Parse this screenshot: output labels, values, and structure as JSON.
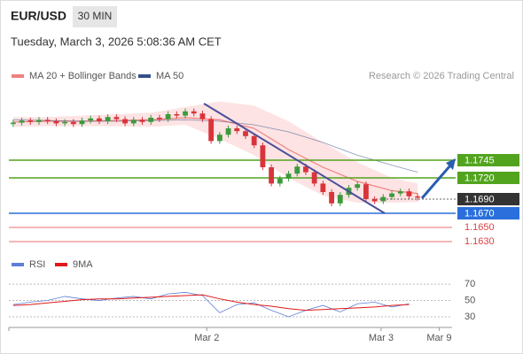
{
  "chart_data": {
    "type": "candlestick",
    "symbol": "EUR/USD",
    "interval": "30 MIN",
    "timestamp": "Tuesday, March 3, 2026 5:08:36 AM CET",
    "source": "Research © 2026 Trading Central",
    "xlim": [
      -0.5,
      51
    ],
    "ylim": [
      1.1615,
      1.18525
    ],
    "xticks": [
      {
        "value": 22.5,
        "label": "Mar 2"
      },
      {
        "value": 42.75,
        "label": "Mar 3"
      },
      {
        "value": 49.5,
        "label": "Mar 9"
      }
    ],
    "up_color": "#3c9a3c",
    "down_color": "#d9343a",
    "open": [
      1.1796,
      1.1798,
      1.1801,
      1.1799,
      1.1802,
      1.18,
      1.1797,
      1.1799,
      1.1796,
      1.1801,
      1.1804,
      1.18,
      1.1806,
      1.1803,
      1.1797,
      1.1802,
      1.1799,
      1.1805,
      1.1803,
      1.181,
      1.1808,
      1.1814,
      1.1811,
      1.1803,
      1.1772,
      1.1781,
      1.179,
      1.1786,
      1.1779,
      1.1766,
      1.1735,
      1.1712,
      1.1719,
      1.1726,
      1.1736,
      1.1728,
      1.1712,
      1.17,
      1.1684,
      1.1696,
      1.1706,
      1.1711,
      1.169,
      1.1687,
      1.1693,
      1.1698,
      1.1701,
      1.1694
    ],
    "high": [
      1.1802,
      1.1805,
      1.1805,
      1.1806,
      1.1806,
      1.1804,
      1.1803,
      1.1803,
      1.1805,
      1.1808,
      1.1808,
      1.181,
      1.181,
      1.1807,
      1.1806,
      1.1806,
      1.1809,
      1.1809,
      1.1814,
      1.1814,
      1.1818,
      1.1818,
      1.1815,
      1.1807,
      1.1785,
      1.1794,
      1.1794,
      1.179,
      1.1783,
      1.177,
      1.1739,
      1.1723,
      1.173,
      1.174,
      1.174,
      1.1732,
      1.1716,
      1.1704,
      1.17,
      1.171,
      1.1715,
      1.1715,
      1.1694,
      1.1697,
      1.1702,
      1.1705,
      1.1705,
      1.1698
    ],
    "low": [
      1.1792,
      1.1794,
      1.1795,
      1.1795,
      1.1796,
      1.1793,
      1.1793,
      1.1792,
      1.1792,
      1.1797,
      1.1796,
      1.1796,
      1.1799,
      1.1793,
      1.1793,
      1.1795,
      1.1795,
      1.1799,
      1.1799,
      1.1804,
      1.1804,
      1.1807,
      1.1799,
      1.1768,
      1.1768,
      1.1777,
      1.1782,
      1.1775,
      1.1762,
      1.1731,
      1.1708,
      1.1708,
      1.1715,
      1.1722,
      1.1724,
      1.1708,
      1.1696,
      1.168,
      1.168,
      1.1692,
      1.1702,
      1.1686,
      1.1683,
      1.1683,
      1.1689,
      1.1694,
      1.169,
      1.1688
    ],
    "close": [
      1.1798,
      1.1801,
      1.1799,
      1.1802,
      1.18,
      1.1797,
      1.1799,
      1.1796,
      1.1801,
      1.1804,
      1.18,
      1.1806,
      1.1803,
      1.1797,
      1.1802,
      1.1799,
      1.1805,
      1.1803,
      1.181,
      1.1808,
      1.1814,
      1.1811,
      1.1803,
      1.1772,
      1.1781,
      1.179,
      1.1786,
      1.1779,
      1.1766,
      1.1735,
      1.1712,
      1.1719,
      1.1726,
      1.1736,
      1.1728,
      1.1712,
      1.17,
      1.1684,
      1.1696,
      1.1706,
      1.1711,
      1.169,
      1.1687,
      1.1693,
      1.1698,
      1.1701,
      1.1694,
      1.1692
    ],
    "bands": {
      "name": "MA 20 + Bollinger Bands",
      "color": "#f08080",
      "fill": "#fde3e3",
      "x": [
        0,
        4,
        8,
        12,
        16,
        20,
        24,
        28,
        32,
        36,
        40,
        44,
        47
      ],
      "values": [
        1.1799,
        1.18,
        1.18,
        1.1801,
        1.1802,
        1.1805,
        1.1802,
        1.179,
        1.176,
        1.1735,
        1.1715,
        1.1702,
        1.1698
      ],
      "upper": [
        1.1806,
        1.1806,
        1.1808,
        1.181,
        1.1812,
        1.182,
        1.1828,
        1.1822,
        1.18,
        1.177,
        1.1742,
        1.172,
        1.1712
      ],
      "lower": [
        1.1792,
        1.1793,
        1.1793,
        1.1793,
        1.1792,
        1.1795,
        1.1775,
        1.1752,
        1.172,
        1.1695,
        1.1685,
        1.1685,
        1.1686
      ]
    },
    "ma50": {
      "name": "MA 50",
      "color": "#34508a",
      "x": [
        0,
        4,
        8,
        12,
        16,
        20,
        24,
        28,
        32,
        36,
        40,
        44,
        47
      ],
      "values": [
        1.1802,
        1.1801,
        1.18,
        1.18,
        1.1801,
        1.1802,
        1.18,
        1.1795,
        1.1785,
        1.177,
        1.1752,
        1.1738,
        1.1728
      ]
    },
    "levels": [
      {
        "value": 1.1745,
        "label": "1.1745",
        "color": "#52a41e",
        "style": "box"
      },
      {
        "value": 1.172,
        "label": "1.1720",
        "color": "#52a41e",
        "style": "box"
      },
      {
        "value": 1.169,
        "label": "1.1690",
        "color": "#333333",
        "style": "box",
        "line": "dotted"
      },
      {
        "value": 1.167,
        "label": "1.1670",
        "color": "#2a6fdb",
        "style": "box"
      },
      {
        "value": 1.165,
        "label": "1.1650",
        "color": "#e04040",
        "style": "text"
      },
      {
        "value": 1.163,
        "label": "1.1630",
        "color": "#e04040",
        "style": "text"
      }
    ],
    "rsi": {
      "ylim": [
        17,
        82
      ],
      "yticks": [
        30,
        50,
        70
      ],
      "x": [
        0,
        2,
        4,
        6,
        8,
        10,
        12,
        14,
        16,
        18,
        20,
        22,
        24,
        26,
        28,
        30,
        32,
        34,
        36,
        38,
        40,
        42,
        44,
        46
      ],
      "series": [
        {
          "name": "RSI",
          "color": "#5b7fd6",
          "values": [
            45,
            48,
            50,
            55,
            52,
            50,
            53,
            55,
            52,
            58,
            60,
            56,
            35,
            45,
            47,
            38,
            30,
            38,
            44,
            36,
            46,
            48,
            42,
            46
          ]
        },
        {
          "name": "9MA",
          "color": "#e01818",
          "values": [
            44,
            45,
            47,
            49,
            51,
            52,
            52,
            53,
            54,
            55,
            56,
            57,
            52,
            48,
            45,
            43,
            40,
            38,
            39,
            40,
            41,
            42,
            44,
            45
          ]
        }
      ]
    }
  }
}
